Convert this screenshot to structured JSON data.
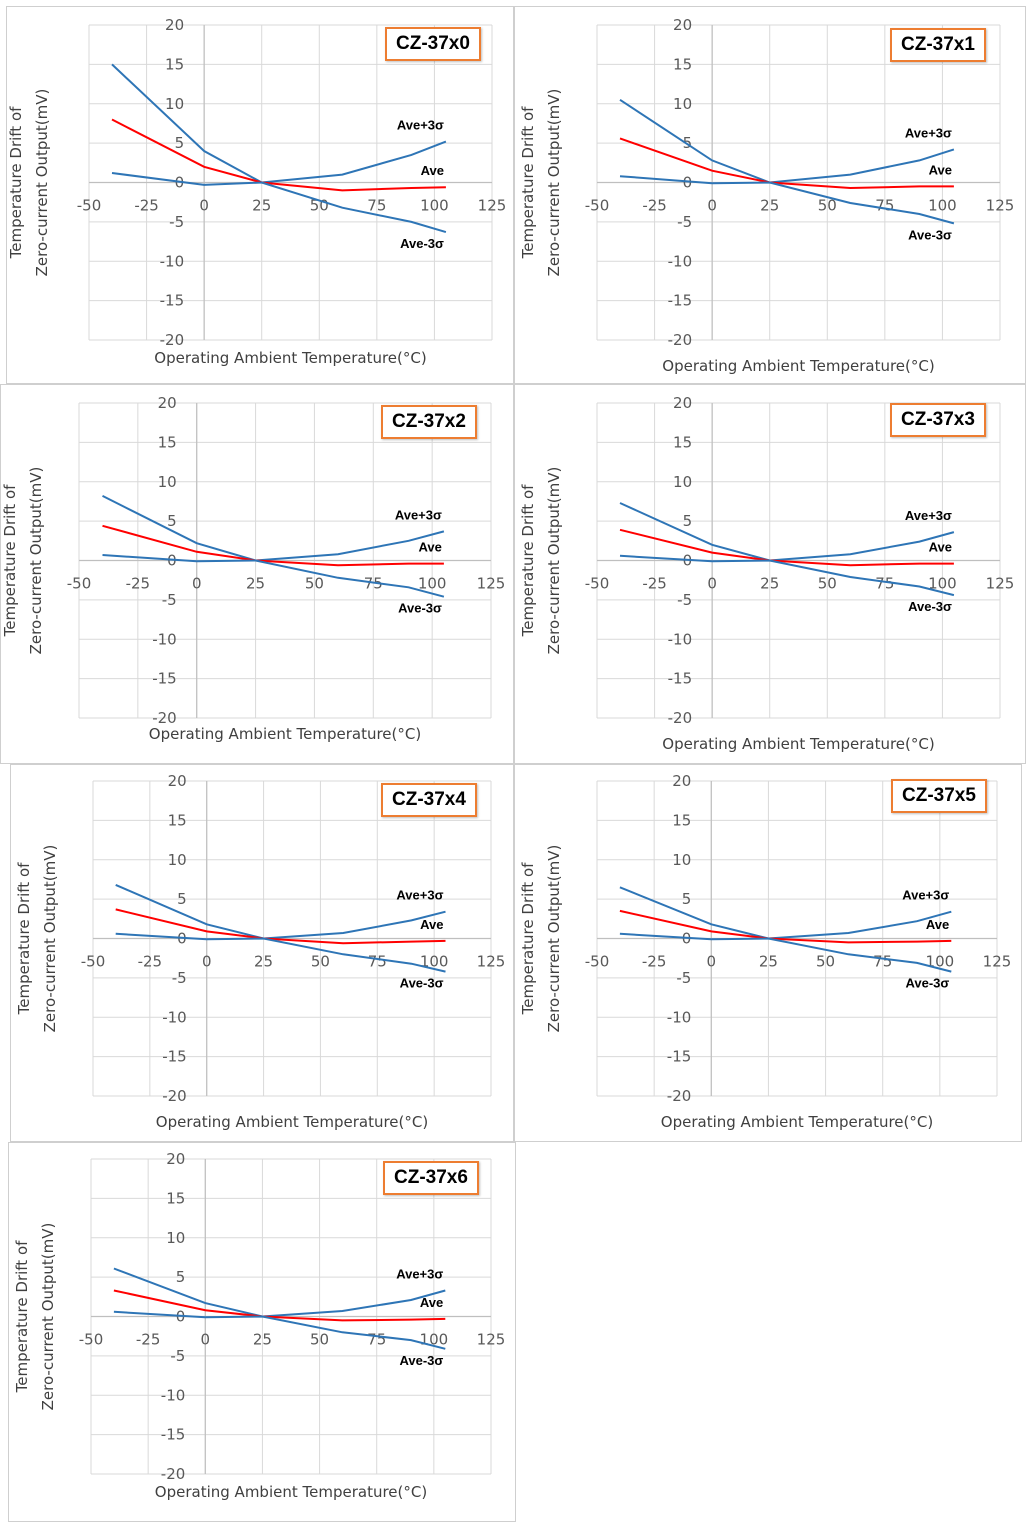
{
  "colors": {
    "ave": "#ff0000",
    "band": "#2e75b6",
    "badge_border": "#ed7d31",
    "grid": "#d9d9d9"
  },
  "chart_data": [
    {
      "type": "line",
      "title": "CZ-37x0",
      "xlabel": "Operating Ambient Temperature(°C)",
      "ylabel_line1": "Temperature Drift of",
      "ylabel_line2": "Zero-current Output(mV)",
      "xlim": [
        -50,
        125
      ],
      "ylim": [
        -20,
        20
      ],
      "xticks": [
        "-50",
        "-25",
        "0",
        "25",
        "50",
        "75",
        "100",
        "125"
      ],
      "yticks": [
        "20",
        "15",
        "10",
        "5",
        "0",
        "-5",
        "-10",
        "-15",
        "-20"
      ],
      "series": [
        {
          "name": "Ave+3σ",
          "x": [
            -40,
            0,
            25,
            60,
            90,
            105
          ],
          "y": [
            15,
            4,
            0,
            1,
            3.5,
            5.2
          ]
        },
        {
          "name": "Ave",
          "x": [
            -40,
            0,
            25,
            60,
            90,
            105
          ],
          "y": [
            8,
            2,
            0,
            -1,
            -0.7,
            -0.6
          ]
        },
        {
          "name": "Ave-3σ",
          "x": [
            -40,
            0,
            25,
            60,
            90,
            105
          ],
          "y": [
            1.2,
            -0.3,
            0,
            -3.2,
            -5,
            -6.3
          ]
        }
      ]
    },
    {
      "type": "line",
      "title": "CZ-37x1",
      "xlabel": "Operating Ambient Temperature(°C)",
      "ylabel_line1": "Temperature Drift of",
      "ylabel_line2": "Zero-current Output(mV)",
      "xlim": [
        -50,
        125
      ],
      "ylim": [
        -20,
        20
      ],
      "xticks": [
        "-50",
        "-25",
        "0",
        "25",
        "50",
        "75",
        "100",
        "125"
      ],
      "yticks": [
        "20",
        "15",
        "10",
        "5",
        "0",
        "-5",
        "-10",
        "-15",
        "-20"
      ],
      "series": [
        {
          "name": "Ave+3σ",
          "x": [
            -40,
            0,
            25,
            60,
            90,
            105
          ],
          "y": [
            10.5,
            2.8,
            0,
            1,
            2.8,
            4.2
          ]
        },
        {
          "name": "Ave",
          "x": [
            -40,
            0,
            25,
            60,
            90,
            105
          ],
          "y": [
            5.6,
            1.5,
            0,
            -0.7,
            -0.5,
            -0.5
          ]
        },
        {
          "name": "Ave-3σ",
          "x": [
            -40,
            0,
            25,
            60,
            90,
            105
          ],
          "y": [
            0.8,
            -0.1,
            0,
            -2.6,
            -4,
            -5.2
          ]
        }
      ]
    },
    {
      "type": "line",
      "title": "CZ-37x2",
      "xlabel": "Operating Ambient Temperature(°C)",
      "ylabel_line1": "Temperature Drift of",
      "ylabel_line2": "Zero-current Output(mV)",
      "xlim": [
        -50,
        125
      ],
      "ylim": [
        -20,
        20
      ],
      "xticks": [
        "-50",
        "-25",
        "0",
        "25",
        "50",
        "75",
        "100",
        "125"
      ],
      "yticks": [
        "20",
        "15",
        "10",
        "5",
        "0",
        "-5",
        "-10",
        "-15",
        "-20"
      ],
      "series": [
        {
          "name": "Ave+3σ",
          "x": [
            -40,
            0,
            25,
            60,
            90,
            105
          ],
          "y": [
            8.2,
            2.2,
            0,
            0.8,
            2.5,
            3.7
          ]
        },
        {
          "name": "Ave",
          "x": [
            -40,
            0,
            25,
            60,
            90,
            105
          ],
          "y": [
            4.4,
            1.1,
            0,
            -0.6,
            -0.4,
            -0.4
          ]
        },
        {
          "name": "Ave-3σ",
          "x": [
            -40,
            0,
            25,
            60,
            90,
            105
          ],
          "y": [
            0.7,
            -0.1,
            0,
            -2.2,
            -3.4,
            -4.6
          ]
        }
      ]
    },
    {
      "type": "line",
      "title": "CZ-37x3",
      "xlabel": "Operating Ambient Temperature(°C)",
      "ylabel_line1": "Temperature Drift of",
      "ylabel_line2": "Zero-current Output(mV)",
      "xlim": [
        -50,
        125
      ],
      "ylim": [
        -20,
        20
      ],
      "xticks": [
        "-50",
        "-25",
        "0",
        "25",
        "50",
        "75",
        "100",
        "125"
      ],
      "yticks": [
        "20",
        "15",
        "10",
        "5",
        "0",
        "-5",
        "-10",
        "-15",
        "-20"
      ],
      "series": [
        {
          "name": "Ave+3σ",
          "x": [
            -40,
            0,
            25,
            60,
            90,
            105
          ],
          "y": [
            7.3,
            2,
            0,
            0.8,
            2.4,
            3.6
          ]
        },
        {
          "name": "Ave",
          "x": [
            -40,
            0,
            25,
            60,
            90,
            105
          ],
          "y": [
            3.9,
            1,
            0,
            -0.6,
            -0.4,
            -0.4
          ]
        },
        {
          "name": "Ave-3σ",
          "x": [
            -40,
            0,
            25,
            60,
            90,
            105
          ],
          "y": [
            0.6,
            -0.1,
            0,
            -2.1,
            -3.3,
            -4.4
          ]
        }
      ]
    },
    {
      "type": "line",
      "title": "CZ-37x4",
      "xlabel": "Operating Ambient Temperature(°C)",
      "ylabel_line1": "Temperature Drift of",
      "ylabel_line2": "Zero-current Output(mV)",
      "xlim": [
        -50,
        125
      ],
      "ylim": [
        -20,
        20
      ],
      "xticks": [
        "-50",
        "-25",
        "0",
        "25",
        "50",
        "75",
        "100",
        "125"
      ],
      "yticks": [
        "20",
        "15",
        "10",
        "5",
        "0",
        "-5",
        "-10",
        "-15",
        "-20"
      ],
      "series": [
        {
          "name": "Ave+3σ",
          "x": [
            -40,
            0,
            25,
            60,
            90,
            105
          ],
          "y": [
            6.8,
            1.8,
            0,
            0.7,
            2.3,
            3.4
          ]
        },
        {
          "name": "Ave",
          "x": [
            -40,
            0,
            25,
            60,
            90,
            105
          ],
          "y": [
            3.7,
            0.9,
            0,
            -0.6,
            -0.4,
            -0.3
          ]
        },
        {
          "name": "Ave-3σ",
          "x": [
            -40,
            0,
            25,
            60,
            90,
            105
          ],
          "y": [
            0.6,
            -0.1,
            0,
            -2,
            -3.2,
            -4.2
          ]
        }
      ]
    },
    {
      "type": "line",
      "title": "CZ-37x5",
      "xlabel": "Operating Ambient Temperature(°C)",
      "ylabel_line1": "Temperature Drift of",
      "ylabel_line2": "Zero-current Output(mV)",
      "xlim": [
        -50,
        125
      ],
      "ylim": [
        -20,
        20
      ],
      "xticks": [
        "-50",
        "-25",
        "0",
        "25",
        "50",
        "75",
        "100",
        "125"
      ],
      "yticks": [
        "20",
        "15",
        "10",
        "5",
        "0",
        "-5",
        "-10",
        "-15",
        "-20"
      ],
      "series": [
        {
          "name": "Ave+3σ",
          "x": [
            -40,
            0,
            25,
            60,
            90,
            105
          ],
          "y": [
            6.5,
            1.8,
            0,
            0.7,
            2.2,
            3.4
          ]
        },
        {
          "name": "Ave",
          "x": [
            -40,
            0,
            25,
            60,
            90,
            105
          ],
          "y": [
            3.5,
            0.9,
            0,
            -0.5,
            -0.4,
            -0.3
          ]
        },
        {
          "name": "Ave-3σ",
          "x": [
            -40,
            0,
            25,
            60,
            90,
            105
          ],
          "y": [
            0.6,
            -0.1,
            0,
            -2,
            -3.1,
            -4.2
          ]
        }
      ]
    },
    {
      "type": "line",
      "title": "CZ-37x6",
      "xlabel": "Operating Ambient Temperature(°C)",
      "ylabel_line1": "Temperature Drift of",
      "ylabel_line2": "Zero-current Output(mV)",
      "xlim": [
        -50,
        125
      ],
      "ylim": [
        -20,
        20
      ],
      "xticks": [
        "-50",
        "-25",
        "0",
        "25",
        "50",
        "75",
        "100",
        "125"
      ],
      "yticks": [
        "20",
        "15",
        "10",
        "5",
        "0",
        "-5",
        "-10",
        "-15",
        "-20"
      ],
      "series": [
        {
          "name": "Ave+3σ",
          "x": [
            -40,
            0,
            25,
            60,
            90,
            105
          ],
          "y": [
            6.1,
            1.7,
            0,
            0.7,
            2.1,
            3.3
          ]
        },
        {
          "name": "Ave",
          "x": [
            -40,
            0,
            25,
            60,
            90,
            105
          ],
          "y": [
            3.3,
            0.8,
            0,
            -0.5,
            -0.4,
            -0.3
          ]
        },
        {
          "name": "Ave-3σ",
          "x": [
            -40,
            0,
            25,
            60,
            90,
            105
          ],
          "y": [
            0.6,
            -0.1,
            0,
            -2,
            -3,
            -4.1
          ]
        }
      ]
    }
  ]
}
